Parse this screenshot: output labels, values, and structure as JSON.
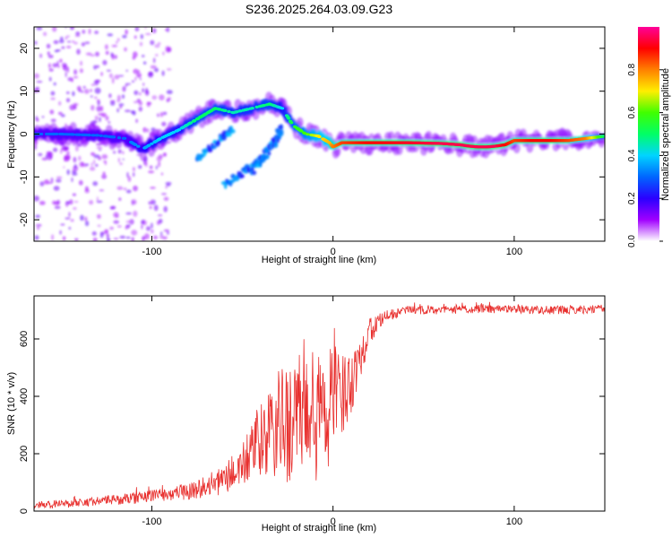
{
  "chart_data": [
    {
      "type": "heatmap",
      "title": "S236.2025.264.03.09.G23",
      "xlabel": "Height of straight line (km)",
      "ylabel": "Frequency (Hz)",
      "xlim": [
        -165,
        150
      ],
      "ylim": [
        -25,
        25
      ],
      "xticks": [
        -100,
        0,
        100
      ],
      "yticks": [
        -20,
        -10,
        0,
        10,
        20
      ],
      "ridge": {
        "x": [
          -165,
          -150,
          -130,
          -115,
          -105,
          -95,
          -85,
          -75,
          -65,
          -55,
          -45,
          -35,
          -28,
          -22,
          -15,
          -8,
          -2,
          0,
          5,
          20,
          40,
          60,
          70,
          75,
          80,
          85,
          90,
          95,
          100,
          110,
          120,
          130,
          140,
          150
        ],
        "y": [
          0,
          0,
          -0.3,
          -1,
          -3.5,
          -1,
          1,
          3.5,
          6,
          5,
          6,
          7,
          6,
          2,
          0,
          -0.5,
          -2,
          -3,
          -2,
          -2,
          -2,
          -2.2,
          -2.5,
          -2.8,
          -3,
          -3,
          -2.8,
          -2.5,
          -1.5,
          -1.5,
          -1.5,
          -1.5,
          -1,
          -0.5
        ],
        "amplitude": [
          0.3,
          0.3,
          0.3,
          0.3,
          0.35,
          0.4,
          0.4,
          0.5,
          0.5,
          0.45,
          0.45,
          0.5,
          0.4,
          0.55,
          0.6,
          0.7,
          0.75,
          0.8,
          0.85,
          0.9,
          0.92,
          0.95,
          0.95,
          0.95,
          0.95,
          0.95,
          0.95,
          0.9,
          0.85,
          0.9,
          0.9,
          0.85,
          0.8,
          0.5
        ]
      },
      "secondary_branches": [
        {
          "x": [
            -60,
            -40,
            -28
          ],
          "y": [
            -12,
            -6,
            2
          ],
          "amplitude": 0.3
        },
        {
          "x": [
            -75,
            -65,
            -55
          ],
          "y": [
            -6,
            -2,
            1
          ],
          "amplitude": 0.3
        },
        {
          "x": [
            -45,
            -35,
            -28
          ],
          "y": [
            -9,
            -4,
            0
          ],
          "amplitude": 0.3
        }
      ],
      "colorbar": {
        "label": "Normalized spectral amplitude",
        "ticks": [
          0.0,
          0.2,
          0.4,
          0.6,
          0.8
        ],
        "range": [
          0,
          1
        ],
        "colors": [
          "#ffffff",
          "#a000ff",
          "#2a00ff",
          "#0066ff",
          "#00d4ff",
          "#00ff66",
          "#40ff00",
          "#ffee00",
          "#ff8000",
          "#ff0000",
          "#ff0099"
        ]
      }
    },
    {
      "type": "line",
      "title": "",
      "xlabel": "Height of straight line (km)",
      "ylabel": "SNR (10 * v/v)",
      "xlim": [
        -165,
        150
      ],
      "ylim": [
        0,
        750
      ],
      "xticks": [
        -100,
        0,
        100
      ],
      "yticks": [
        0,
        200,
        400,
        600
      ],
      "color": "#e8302e",
      "series": [
        {
          "name": "SNR",
          "x": [
            -165,
            -150,
            -130,
            -110,
            -100,
            -90,
            -80,
            -70,
            -60,
            -50,
            -45,
            -40,
            -35,
            -30,
            -25,
            -20,
            -15,
            -10,
            -5,
            0,
            5,
            10,
            15,
            20,
            25,
            30,
            40,
            60,
            80,
            100,
            120,
            150
          ],
          "y": [
            20,
            25,
            35,
            45,
            55,
            60,
            70,
            85,
            110,
            160,
            200,
            240,
            270,
            290,
            310,
            320,
            330,
            320,
            340,
            350,
            400,
            460,
            540,
            620,
            660,
            680,
            700,
            700,
            705,
            705,
            700,
            705
          ],
          "noise_amplitude": [
            15,
            15,
            15,
            20,
            20,
            25,
            30,
            40,
            50,
            80,
            100,
            130,
            160,
            200,
            220,
            230,
            240,
            250,
            220,
            200,
            150,
            120,
            80,
            50,
            30,
            20,
            15,
            15,
            15,
            15,
            15,
            15
          ]
        }
      ]
    }
  ]
}
